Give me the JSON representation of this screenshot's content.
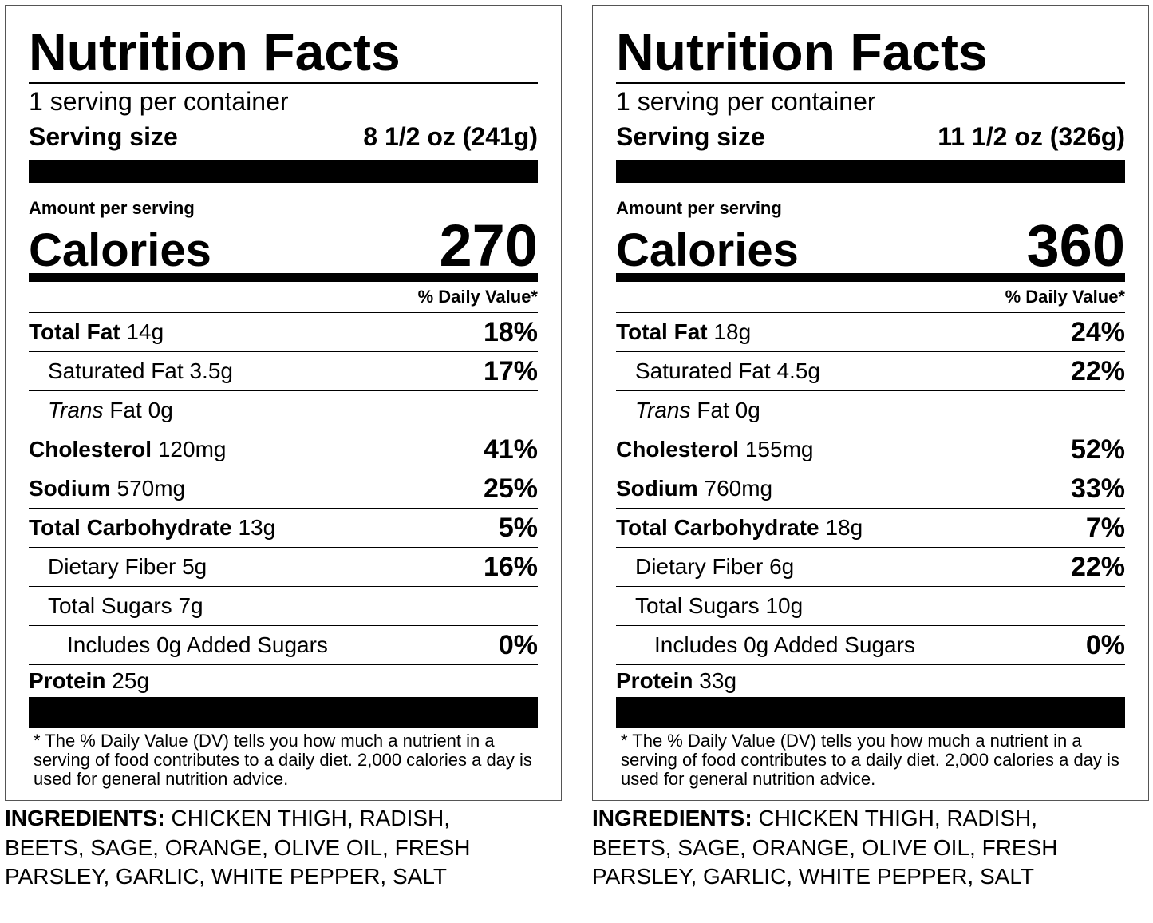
{
  "labels": [
    {
      "title": "Nutrition Facts",
      "servings": "1 serving per container",
      "serving_size_label": "Serving size",
      "serving_size": "8 1/2 oz (241g)",
      "amount_per_serving": "Amount per serving",
      "calories_label": "Calories",
      "calories": "270",
      "daily_value_header": "% Daily Value*",
      "rows": [
        {
          "name": "Total Fat",
          "amount": "14g",
          "dv": "18%",
          "level": 0
        },
        {
          "name": "Saturated Fat",
          "amount": "3.5g",
          "dv": "17%",
          "level": 1
        },
        {
          "name_italic": "Trans",
          "name": "Fat",
          "amount": "0g",
          "level": 1
        },
        {
          "name": "Cholesterol",
          "amount": "120mg",
          "dv": "41%",
          "level": 0
        },
        {
          "name": "Sodium",
          "amount": "570mg",
          "dv": "25%",
          "level": 0
        },
        {
          "name": "Total Carbohydrate",
          "amount": "13g",
          "dv": "5%",
          "level": 0
        },
        {
          "name": "Dietary Fiber",
          "amount": "5g",
          "dv": "16%",
          "level": 1
        },
        {
          "name": "Total Sugars",
          "amount": "7g",
          "level": 1
        },
        {
          "name": "Includes 0g Added Sugars",
          "dv": "0%",
          "level": 2
        },
        {
          "name": "Protein",
          "amount": "25g",
          "level": 0
        }
      ],
      "footnote": "* The % Daily Value (DV) tells you how much a nutrient in a serving of food contributes to a daily diet. 2,000 calories a day is used for general nutrition advice.",
      "ingredients_label": "INGREDIENTS:",
      "ingredients": "CHICKEN THIGH, RADISH, BEETS, SAGE, ORANGE, OLIVE OIL, FRESH PARSLEY, GARLIC, WHITE PEPPER, SALT"
    },
    {
      "title": "Nutrition Facts",
      "servings": "1 serving per container",
      "serving_size_label": "Serving size",
      "serving_size": "11 1/2 oz (326g)",
      "amount_per_serving": "Amount per serving",
      "calories_label": "Calories",
      "calories": "360",
      "daily_value_header": "% Daily Value*",
      "rows": [
        {
          "name": "Total Fat",
          "amount": "18g",
          "dv": "24%",
          "level": 0
        },
        {
          "name": "Saturated Fat",
          "amount": "4.5g",
          "dv": "22%",
          "level": 1
        },
        {
          "name_italic": "Trans",
          "name": "Fat",
          "amount": "0g",
          "level": 1
        },
        {
          "name": "Cholesterol",
          "amount": "155mg",
          "dv": "52%",
          "level": 0
        },
        {
          "name": "Sodium",
          "amount": "760mg",
          "dv": "33%",
          "level": 0
        },
        {
          "name": "Total Carbohydrate",
          "amount": "18g",
          "dv": "7%",
          "level": 0
        },
        {
          "name": "Dietary Fiber",
          "amount": "6g",
          "dv": "22%",
          "level": 1
        },
        {
          "name": "Total Sugars",
          "amount": "10g",
          "level": 1
        },
        {
          "name": "Includes 0g Added Sugars",
          "dv": "0%",
          "level": 2
        },
        {
          "name": "Protein",
          "amount": "33g",
          "level": 0
        }
      ],
      "footnote": "* The % Daily Value (DV) tells you how much a nutrient in a serving of food contributes to a daily diet. 2,000 calories a day is used for general nutrition advice.",
      "ingredients_label": "INGREDIENTS:",
      "ingredients": "CHICKEN THIGH, RADISH, BEETS, SAGE, ORANGE, OLIVE OIL, FRESH PARSLEY, GARLIC, WHITE PEPPER, SALT"
    }
  ]
}
